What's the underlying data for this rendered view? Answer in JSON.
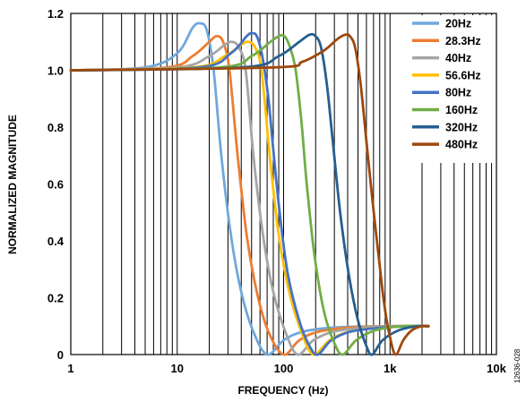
{
  "chart_data": {
    "type": "line",
    "title": "",
    "xlabel": "FREQUENCY (Hz)",
    "ylabel": "NORMALIZED MAGNITUDE",
    "x_scale": "log",
    "xlim": [
      1,
      10000
    ],
    "ylim": [
      0,
      1.2
    ],
    "x_ticks": [
      {
        "value": 1,
        "label": "1"
      },
      {
        "value": 10,
        "label": "10"
      },
      {
        "value": 100,
        "label": "100"
      },
      {
        "value": 1000,
        "label": "1k"
      },
      {
        "value": 10000,
        "label": "10k"
      }
    ],
    "y_ticks": [
      {
        "value": 0,
        "label": "0"
      },
      {
        "value": 0.2,
        "label": "0.2"
      },
      {
        "value": 0.4,
        "label": "0.4"
      },
      {
        "value": 0.6,
        "label": "0.6"
      },
      {
        "value": 0.8,
        "label": "0.8"
      },
      {
        "value": 1.0,
        "label": "1.0"
      },
      {
        "value": 1.2,
        "label": "1.2"
      }
    ],
    "grid": "vertical log gridlines",
    "legend_position": "top-right",
    "series": [
      {
        "name": "20Hz",
        "color": "#6fa8dc",
        "points": [
          [
            1,
            1.0
          ],
          [
            5,
            1.01
          ],
          [
            10,
            1.06
          ],
          [
            14,
            1.15
          ],
          [
            16.5,
            1.165
          ],
          [
            19,
            1.14
          ],
          [
            22,
            1.0
          ],
          [
            26,
            0.7
          ],
          [
            32,
            0.42
          ],
          [
            40,
            0.22
          ],
          [
            52,
            0.08
          ],
          [
            70,
            0.0
          ],
          [
            100,
            0.05
          ],
          [
            150,
            0.08
          ],
          [
            300,
            0.095
          ],
          [
            1000,
            0.1
          ],
          [
            2300,
            0.1
          ]
        ]
      },
      {
        "name": "28.3Hz",
        "color": "#ed7d31",
        "points": [
          [
            1,
            1.0
          ],
          [
            8,
            1.01
          ],
          [
            14,
            1.05
          ],
          [
            20,
            1.1
          ],
          [
            23.5,
            1.12
          ],
          [
            27,
            1.1
          ],
          [
            31,
            1.0
          ],
          [
            37,
            0.7
          ],
          [
            45,
            0.42
          ],
          [
            56,
            0.22
          ],
          [
            72,
            0.08
          ],
          [
            100,
            0.0
          ],
          [
            140,
            0.05
          ],
          [
            210,
            0.08
          ],
          [
            420,
            0.095
          ],
          [
            1000,
            0.1
          ],
          [
            2300,
            0.1
          ]
        ]
      },
      {
        "name": "40Hz",
        "color": "#a5a5a5",
        "points": [
          [
            1,
            1.0
          ],
          [
            10,
            1.01
          ],
          [
            20,
            1.05
          ],
          [
            28,
            1.09
          ],
          [
            33,
            1.1
          ],
          [
            38,
            1.08
          ],
          [
            44,
            1.0
          ],
          [
            52,
            0.7
          ],
          [
            64,
            0.42
          ],
          [
            80,
            0.22
          ],
          [
            104,
            0.08
          ],
          [
            135,
            0.0
          ],
          [
            190,
            0.05
          ],
          [
            290,
            0.08
          ],
          [
            580,
            0.095
          ],
          [
            1200,
            0.1
          ],
          [
            2300,
            0.1
          ]
        ]
      },
      {
        "name": "56.6Hz",
        "color": "#ffc000",
        "points": [
          [
            1,
            1.0
          ],
          [
            14,
            1.01
          ],
          [
            28,
            1.05
          ],
          [
            40,
            1.09
          ],
          [
            47,
            1.1
          ],
          [
            54,
            1.08
          ],
          [
            62,
            1.0
          ],
          [
            74,
            0.7
          ],
          [
            90,
            0.42
          ],
          [
            113,
            0.22
          ],
          [
            147,
            0.08
          ],
          [
            190,
            0.0
          ],
          [
            270,
            0.05
          ],
          [
            410,
            0.08
          ],
          [
            820,
            0.095
          ],
          [
            1600,
            0.1
          ],
          [
            2300,
            0.1
          ]
        ]
      },
      {
        "name": "80Hz",
        "color": "#4472c4",
        "points": [
          [
            1,
            1.0
          ],
          [
            16,
            1.01
          ],
          [
            32,
            1.06
          ],
          [
            45,
            1.12
          ],
          [
            50,
            1.13
          ],
          [
            56,
            1.12
          ],
          [
            63,
            1.05
          ],
          [
            72,
            0.9
          ],
          [
            80,
            0.72
          ],
          [
            93,
            0.48
          ],
          [
            110,
            0.28
          ],
          [
            140,
            0.12
          ],
          [
            175,
            0.03
          ],
          [
            210,
            0.0
          ],
          [
            280,
            0.05
          ],
          [
            420,
            0.08
          ],
          [
            840,
            0.095
          ],
          [
            1600,
            0.1
          ],
          [
            2300,
            0.1
          ]
        ]
      },
      {
        "name": "160Hz",
        "color": "#70ad47",
        "points": [
          [
            1,
            1.0
          ],
          [
            25,
            1.01
          ],
          [
            50,
            1.05
          ],
          [
            75,
            1.1
          ],
          [
            90,
            1.12
          ],
          [
            102,
            1.12
          ],
          [
            115,
            1.08
          ],
          [
            130,
            1.0
          ],
          [
            147,
            0.82
          ],
          [
            165,
            0.6
          ],
          [
            195,
            0.35
          ],
          [
            240,
            0.15
          ],
          [
            300,
            0.04
          ],
          [
            360,
            0.0
          ],
          [
            480,
            0.05
          ],
          [
            720,
            0.085
          ],
          [
            1300,
            0.1
          ],
          [
            2300,
            0.1
          ]
        ]
      },
      {
        "name": "320Hz",
        "color": "#255e91",
        "points": [
          [
            1,
            1.0
          ],
          [
            40,
            1.01
          ],
          [
            90,
            1.05
          ],
          [
            140,
            1.1
          ],
          [
            175,
            1.125
          ],
          [
            200,
            1.12
          ],
          [
            225,
            1.08
          ],
          [
            255,
            0.95
          ],
          [
            290,
            0.75
          ],
          [
            340,
            0.5
          ],
          [
            410,
            0.28
          ],
          [
            500,
            0.12
          ],
          [
            600,
            0.03
          ],
          [
            680,
            0.0
          ],
          [
            850,
            0.05
          ],
          [
            1200,
            0.085
          ],
          [
            1800,
            0.1
          ],
          [
            2300,
            0.1
          ]
        ]
      },
      {
        "name": "480Hz",
        "color": "#9e480e",
        "points": [
          [
            1,
            1.0
          ],
          [
            80,
            1.01
          ],
          [
            150,
            1.03
          ],
          [
            240,
            1.07
          ],
          [
            320,
            1.11
          ],
          [
            380,
            1.125
          ],
          [
            420,
            1.12
          ],
          [
            470,
            1.08
          ],
          [
            530,
            0.95
          ],
          [
            600,
            0.75
          ],
          [
            680,
            0.55
          ],
          [
            780,
            0.35
          ],
          [
            880,
            0.18
          ],
          [
            1000,
            0.06
          ],
          [
            1130,
            0.0
          ],
          [
            1330,
            0.05
          ],
          [
            1600,
            0.085
          ],
          [
            2000,
            0.1
          ],
          [
            2300,
            0.1
          ]
        ]
      }
    ]
  },
  "figure_id": "12636-028"
}
